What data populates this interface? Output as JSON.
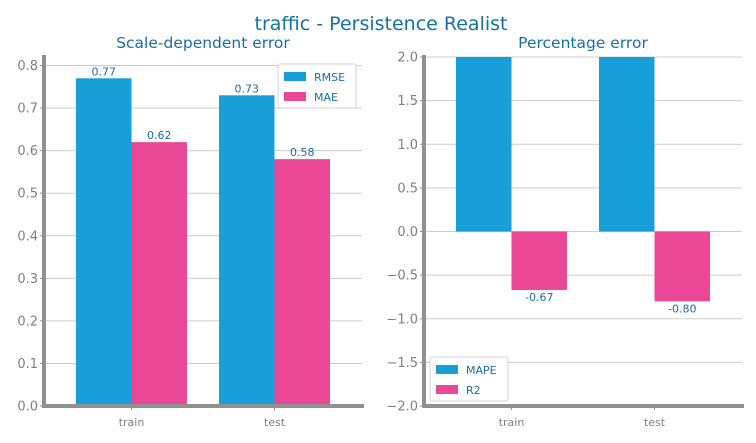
{
  "title": "traffic - Persistence Realist",
  "colors": {
    "title": "#1570a8",
    "series_a": "#199fd7",
    "series_b": "#ea4797",
    "axis": "#909090",
    "grid": "#cccccc",
    "label": "#1a6ea3"
  },
  "chart_data": [
    {
      "type": "bar",
      "title": "Scale-dependent error",
      "categories": [
        "train",
        "test"
      ],
      "series": [
        {
          "name": "RMSE",
          "values": [
            0.77,
            0.73
          ],
          "labels": [
            "0.77",
            "0.73"
          ]
        },
        {
          "name": "MAE",
          "values": [
            0.62,
            0.58
          ],
          "labels": [
            "0.62",
            "0.58"
          ]
        }
      ],
      "ylim": [
        0,
        0.82
      ],
      "yticks": [
        0,
        0.1,
        0.2,
        0.3,
        0.4,
        0.5,
        0.6,
        0.7,
        0.8
      ],
      "ytick_labels": [
        "0.0",
        "0.1",
        "0.2",
        "0.3",
        "0.4",
        "0.5",
        "0.6",
        "0.7",
        "0.8"
      ],
      "grid": true,
      "legend": "top-right"
    },
    {
      "type": "bar",
      "title": "Percentage error",
      "categories": [
        "train",
        "test"
      ],
      "series": [
        {
          "name": "MAPE",
          "values": [
            2.0,
            2.0
          ],
          "labels": [
            "",
            ""
          ]
        },
        {
          "name": "R2",
          "values": [
            -0.67,
            -0.8
          ],
          "labels": [
            "-0.67",
            "-0.80"
          ]
        }
      ],
      "ylim": [
        -2.0,
        2.0
      ],
      "yticks": [
        -2.0,
        -1.5,
        -1.0,
        -0.5,
        0.0,
        0.5,
        1.0,
        1.5,
        2.0
      ],
      "ytick_labels": [
        "−2.0",
        "−1.5",
        "−1.0",
        "−0.5",
        "0.0",
        "0.5",
        "1.0",
        "1.5",
        "2.0"
      ],
      "grid": true,
      "legend": "bottom-left"
    }
  ]
}
